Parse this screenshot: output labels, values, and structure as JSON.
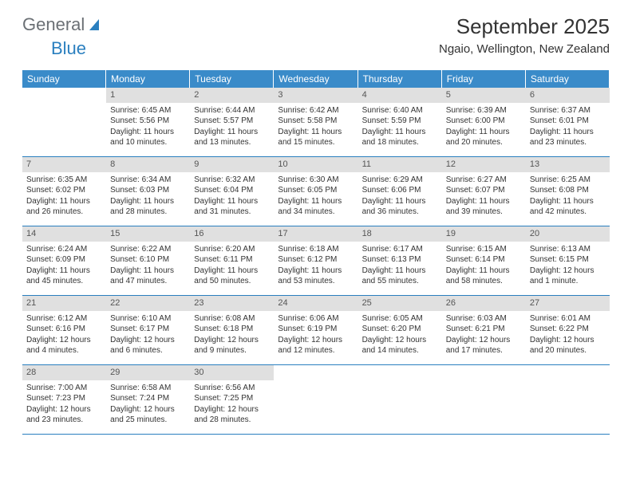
{
  "brand": {
    "part1": "General",
    "part2": "Blue"
  },
  "title": "September 2025",
  "location": "Ngaio, Wellington, New Zealand",
  "header_bg": "#3a8bc9",
  "accent": "#2a7fbf",
  "daynum_bg": "#e0e0e0",
  "dow": [
    "Sunday",
    "Monday",
    "Tuesday",
    "Wednesday",
    "Thursday",
    "Friday",
    "Saturday"
  ],
  "weeks": [
    [
      {
        "n": "",
        "sr": "",
        "ss": "",
        "dl": ""
      },
      {
        "n": "1",
        "sr": "Sunrise: 6:45 AM",
        "ss": "Sunset: 5:56 PM",
        "dl": "Daylight: 11 hours and 10 minutes."
      },
      {
        "n": "2",
        "sr": "Sunrise: 6:44 AM",
        "ss": "Sunset: 5:57 PM",
        "dl": "Daylight: 11 hours and 13 minutes."
      },
      {
        "n": "3",
        "sr": "Sunrise: 6:42 AM",
        "ss": "Sunset: 5:58 PM",
        "dl": "Daylight: 11 hours and 15 minutes."
      },
      {
        "n": "4",
        "sr": "Sunrise: 6:40 AM",
        "ss": "Sunset: 5:59 PM",
        "dl": "Daylight: 11 hours and 18 minutes."
      },
      {
        "n": "5",
        "sr": "Sunrise: 6:39 AM",
        "ss": "Sunset: 6:00 PM",
        "dl": "Daylight: 11 hours and 20 minutes."
      },
      {
        "n": "6",
        "sr": "Sunrise: 6:37 AM",
        "ss": "Sunset: 6:01 PM",
        "dl": "Daylight: 11 hours and 23 minutes."
      }
    ],
    [
      {
        "n": "7",
        "sr": "Sunrise: 6:35 AM",
        "ss": "Sunset: 6:02 PM",
        "dl": "Daylight: 11 hours and 26 minutes."
      },
      {
        "n": "8",
        "sr": "Sunrise: 6:34 AM",
        "ss": "Sunset: 6:03 PM",
        "dl": "Daylight: 11 hours and 28 minutes."
      },
      {
        "n": "9",
        "sr": "Sunrise: 6:32 AM",
        "ss": "Sunset: 6:04 PM",
        "dl": "Daylight: 11 hours and 31 minutes."
      },
      {
        "n": "10",
        "sr": "Sunrise: 6:30 AM",
        "ss": "Sunset: 6:05 PM",
        "dl": "Daylight: 11 hours and 34 minutes."
      },
      {
        "n": "11",
        "sr": "Sunrise: 6:29 AM",
        "ss": "Sunset: 6:06 PM",
        "dl": "Daylight: 11 hours and 36 minutes."
      },
      {
        "n": "12",
        "sr": "Sunrise: 6:27 AM",
        "ss": "Sunset: 6:07 PM",
        "dl": "Daylight: 11 hours and 39 minutes."
      },
      {
        "n": "13",
        "sr": "Sunrise: 6:25 AM",
        "ss": "Sunset: 6:08 PM",
        "dl": "Daylight: 11 hours and 42 minutes."
      }
    ],
    [
      {
        "n": "14",
        "sr": "Sunrise: 6:24 AM",
        "ss": "Sunset: 6:09 PM",
        "dl": "Daylight: 11 hours and 45 minutes."
      },
      {
        "n": "15",
        "sr": "Sunrise: 6:22 AM",
        "ss": "Sunset: 6:10 PM",
        "dl": "Daylight: 11 hours and 47 minutes."
      },
      {
        "n": "16",
        "sr": "Sunrise: 6:20 AM",
        "ss": "Sunset: 6:11 PM",
        "dl": "Daylight: 11 hours and 50 minutes."
      },
      {
        "n": "17",
        "sr": "Sunrise: 6:18 AM",
        "ss": "Sunset: 6:12 PM",
        "dl": "Daylight: 11 hours and 53 minutes."
      },
      {
        "n": "18",
        "sr": "Sunrise: 6:17 AM",
        "ss": "Sunset: 6:13 PM",
        "dl": "Daylight: 11 hours and 55 minutes."
      },
      {
        "n": "19",
        "sr": "Sunrise: 6:15 AM",
        "ss": "Sunset: 6:14 PM",
        "dl": "Daylight: 11 hours and 58 minutes."
      },
      {
        "n": "20",
        "sr": "Sunrise: 6:13 AM",
        "ss": "Sunset: 6:15 PM",
        "dl": "Daylight: 12 hours and 1 minute."
      }
    ],
    [
      {
        "n": "21",
        "sr": "Sunrise: 6:12 AM",
        "ss": "Sunset: 6:16 PM",
        "dl": "Daylight: 12 hours and 4 minutes."
      },
      {
        "n": "22",
        "sr": "Sunrise: 6:10 AM",
        "ss": "Sunset: 6:17 PM",
        "dl": "Daylight: 12 hours and 6 minutes."
      },
      {
        "n": "23",
        "sr": "Sunrise: 6:08 AM",
        "ss": "Sunset: 6:18 PM",
        "dl": "Daylight: 12 hours and 9 minutes."
      },
      {
        "n": "24",
        "sr": "Sunrise: 6:06 AM",
        "ss": "Sunset: 6:19 PM",
        "dl": "Daylight: 12 hours and 12 minutes."
      },
      {
        "n": "25",
        "sr": "Sunrise: 6:05 AM",
        "ss": "Sunset: 6:20 PM",
        "dl": "Daylight: 12 hours and 14 minutes."
      },
      {
        "n": "26",
        "sr": "Sunrise: 6:03 AM",
        "ss": "Sunset: 6:21 PM",
        "dl": "Daylight: 12 hours and 17 minutes."
      },
      {
        "n": "27",
        "sr": "Sunrise: 6:01 AM",
        "ss": "Sunset: 6:22 PM",
        "dl": "Daylight: 12 hours and 20 minutes."
      }
    ],
    [
      {
        "n": "28",
        "sr": "Sunrise: 7:00 AM",
        "ss": "Sunset: 7:23 PM",
        "dl": "Daylight: 12 hours and 23 minutes."
      },
      {
        "n": "29",
        "sr": "Sunrise: 6:58 AM",
        "ss": "Sunset: 7:24 PM",
        "dl": "Daylight: 12 hours and 25 minutes."
      },
      {
        "n": "30",
        "sr": "Sunrise: 6:56 AM",
        "ss": "Sunset: 7:25 PM",
        "dl": "Daylight: 12 hours and 28 minutes."
      },
      {
        "n": "",
        "sr": "",
        "ss": "",
        "dl": ""
      },
      {
        "n": "",
        "sr": "",
        "ss": "",
        "dl": ""
      },
      {
        "n": "",
        "sr": "",
        "ss": "",
        "dl": ""
      },
      {
        "n": "",
        "sr": "",
        "ss": "",
        "dl": ""
      }
    ]
  ]
}
